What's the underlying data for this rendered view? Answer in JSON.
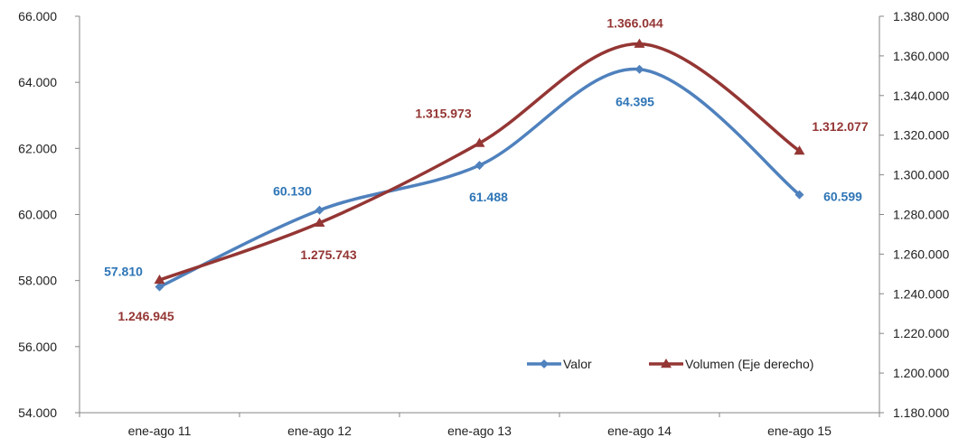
{
  "chart_data": {
    "type": "line",
    "categories": [
      "ene-ago 11",
      "ene-ago 12",
      "ene-ago 13",
      "ene-ago 14",
      "ene-ago 15"
    ],
    "series": [
      {
        "name": "Valor",
        "axis": "left",
        "values": [
          57810,
          60130,
          61488,
          64395,
          60599
        ],
        "labels": [
          "57.810",
          "60.130",
          "61.488",
          "64.395",
          "60.599"
        ],
        "color": "#4F81BD",
        "label_color": "#2E75B6",
        "marker": "diamond"
      },
      {
        "name": "Volumen (Eje derecho)",
        "axis": "right",
        "values": [
          1246945,
          1275743,
          1315973,
          1366044,
          1312077
        ],
        "labels": [
          "1.246.945",
          "1.275.743",
          "1.315.973",
          "1.366.044",
          "1.312.077"
        ],
        "color": "#943634",
        "label_color": "#943634",
        "marker": "triangle"
      }
    ],
    "y_left": {
      "min": 54000,
      "max": 66000,
      "ticks": [
        54000,
        56000,
        58000,
        60000,
        62000,
        64000,
        66000
      ],
      "tick_labels": [
        "54.000",
        "56.000",
        "58.000",
        "60.000",
        "62.000",
        "64.000",
        "66.000"
      ]
    },
    "y_right": {
      "min": 1180000,
      "max": 1380000,
      "ticks": [
        1180000,
        1200000,
        1220000,
        1240000,
        1260000,
        1280000,
        1300000,
        1320000,
        1340000,
        1360000,
        1380000
      ],
      "tick_labels": [
        "1.180.000",
        "1.200.000",
        "1.220.000",
        "1.240.000",
        "1.260.000",
        "1.280.000",
        "1.300.000",
        "1.320.000",
        "1.340.000",
        "1.360.000",
        "1.380.000"
      ]
    },
    "grid": false,
    "legend_position": "bottom-right"
  }
}
